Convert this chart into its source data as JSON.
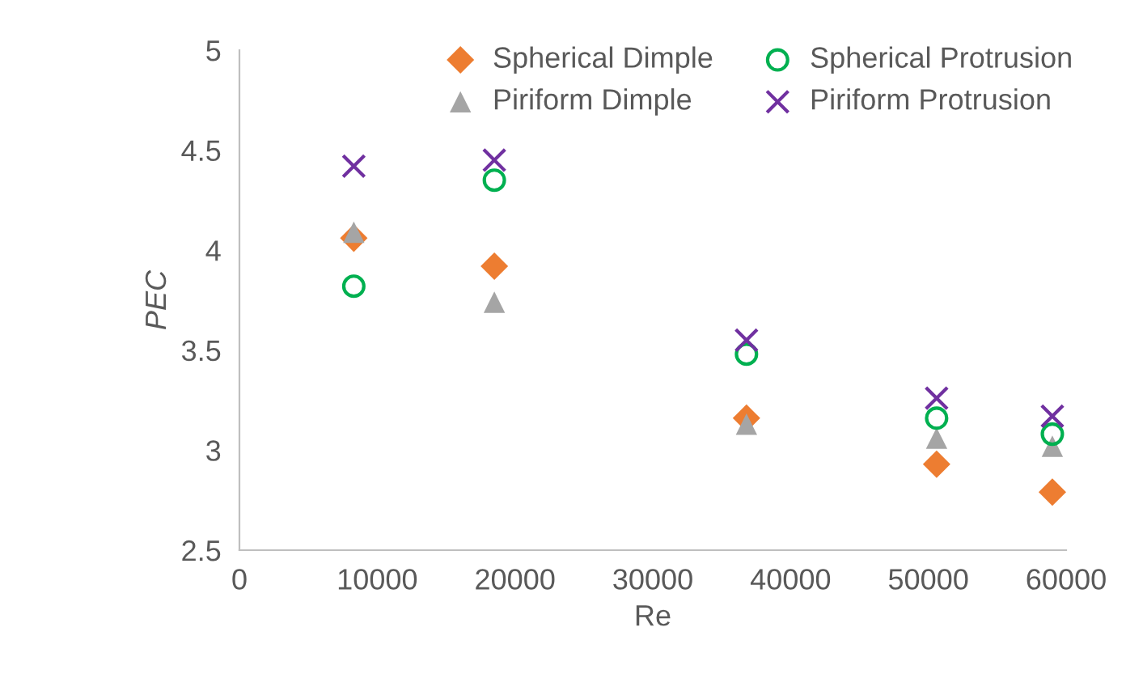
{
  "chart_data": {
    "type": "scatter",
    "xlabel": "Re",
    "ylabel": "PEC",
    "x": [
      8300,
      18500,
      36800,
      50600,
      59000
    ],
    "series": [
      {
        "name": "Spherical Dimple",
        "color": "#ed7d31",
        "marker": "diamond",
        "values": [
          4.06,
          3.92,
          3.16,
          2.93,
          2.79
        ]
      },
      {
        "name": "Piriform Dimple",
        "color": "#a5a5a5",
        "marker": "triangle",
        "values": [
          4.09,
          3.74,
          3.13,
          3.06,
          3.02
        ]
      },
      {
        "name": "Spherical Protrusion",
        "color": "#00b050",
        "marker": "circle",
        "values": [
          3.82,
          4.35,
          3.48,
          3.16,
          3.08
        ]
      },
      {
        "name": "Piriform Protrusion",
        "color": "#7030a0",
        "marker": "cross",
        "values": [
          4.42,
          4.45,
          3.55,
          3.26,
          3.17
        ]
      }
    ],
    "xlim": [
      0,
      60000
    ],
    "xticks": [
      0,
      10000,
      20000,
      30000,
      40000,
      50000,
      60000
    ],
    "ylim": [
      2.5,
      5
    ],
    "yticks": [
      2.5,
      3,
      3.5,
      4,
      4.5,
      5
    ],
    "grid": false,
    "legend": "top"
  }
}
